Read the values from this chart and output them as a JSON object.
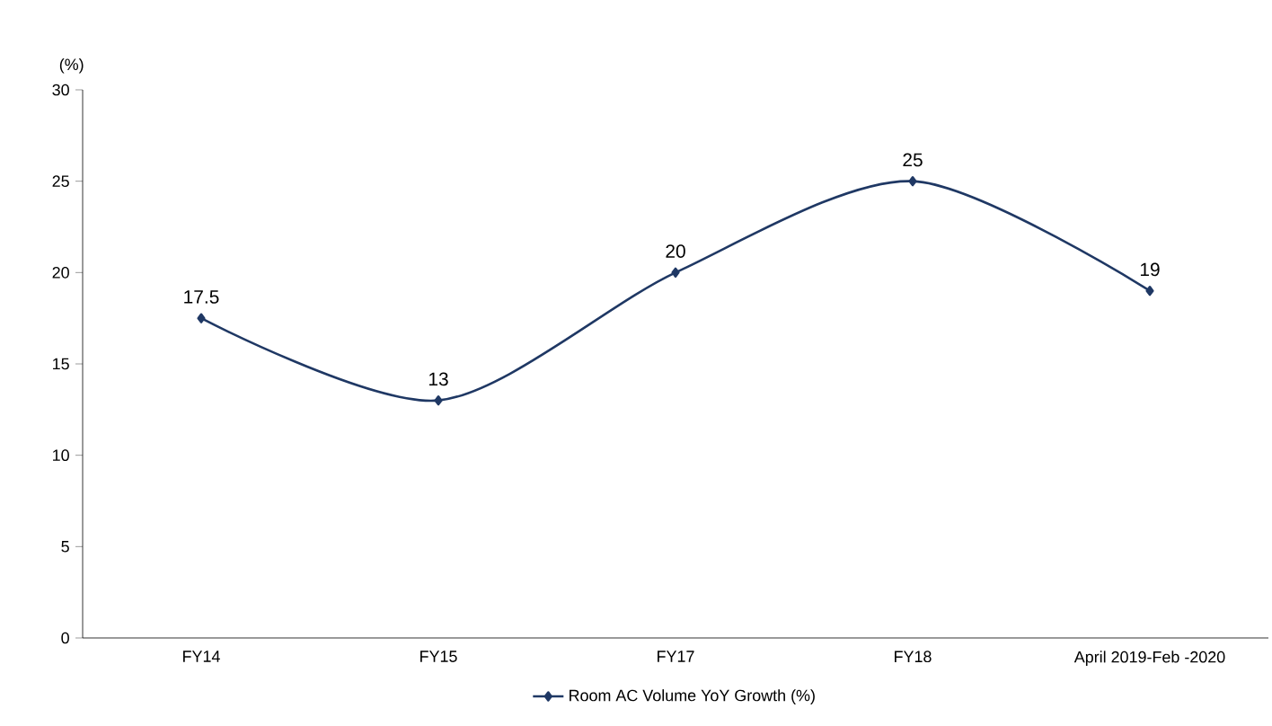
{
  "chart_data": {
    "type": "line",
    "ylabel": "(%)",
    "categories": [
      "FY14",
      "FY15",
      "FY17",
      "FY18",
      "April 2019-Feb -2020"
    ],
    "series": [
      {
        "name": "Room AC Volume YoY Growth  (%)",
        "color": "#1f3864",
        "values": [
          17.5,
          13,
          20,
          25,
          19
        ]
      }
    ],
    "ylim": [
      0,
      30
    ],
    "yticks": [
      0,
      5,
      10,
      15,
      20,
      25,
      30
    ],
    "grid": false,
    "legend": "bottom",
    "marker": "diamond",
    "line_style": "solid",
    "data_labels": true
  }
}
